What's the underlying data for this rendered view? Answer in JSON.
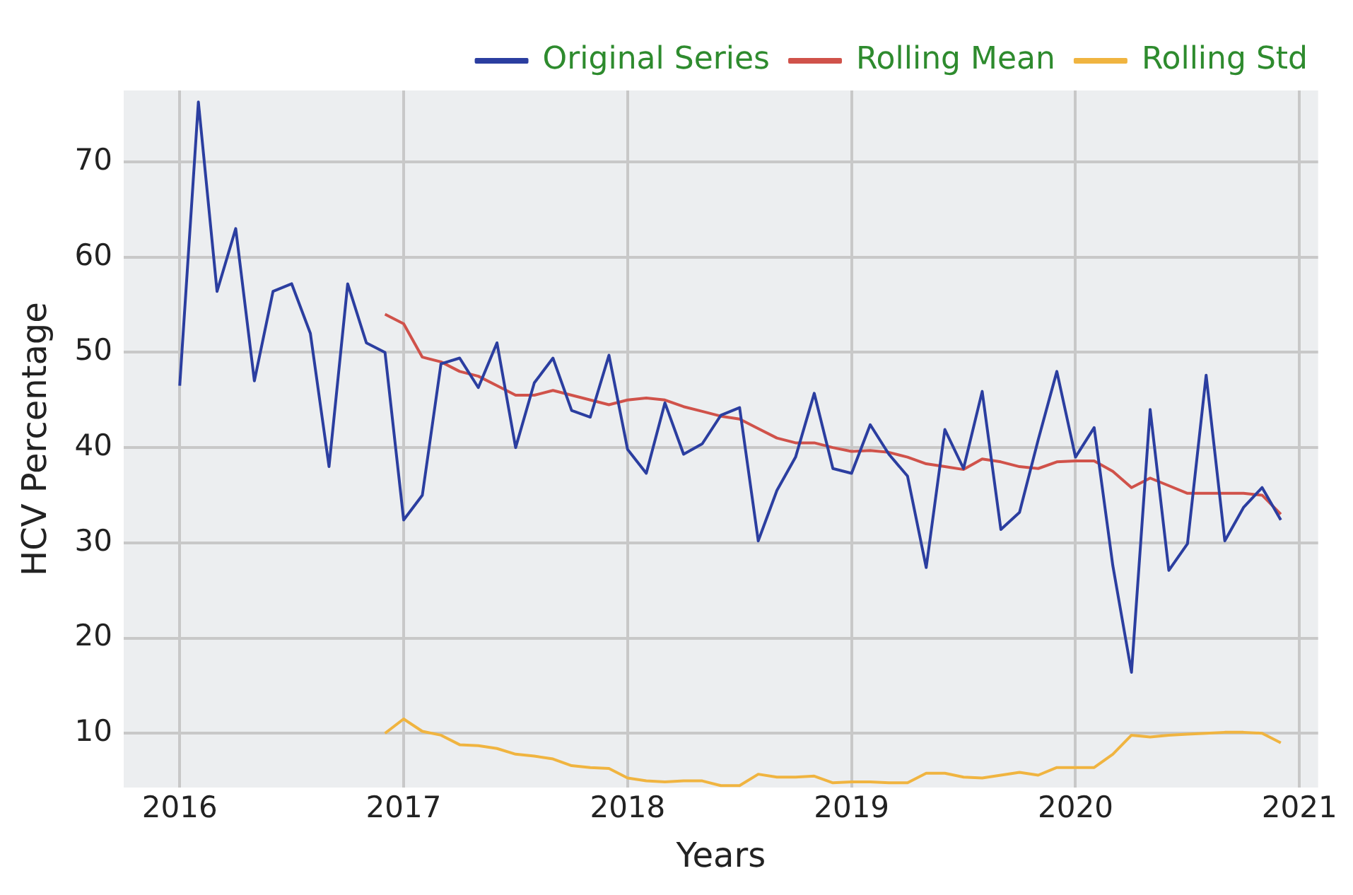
{
  "chart_data": {
    "type": "line",
    "xlabel": "Years",
    "ylabel": "HCV Percentage",
    "x": [
      "2016-01",
      "2016-02",
      "2016-03",
      "2016-04",
      "2016-05",
      "2016-06",
      "2016-07",
      "2016-08",
      "2016-09",
      "2016-10",
      "2016-11",
      "2016-12",
      "2017-01",
      "2017-02",
      "2017-03",
      "2017-04",
      "2017-05",
      "2017-06",
      "2017-07",
      "2017-08",
      "2017-09",
      "2017-10",
      "2017-11",
      "2017-12",
      "2018-01",
      "2018-02",
      "2018-03",
      "2018-04",
      "2018-05",
      "2018-06",
      "2018-07",
      "2018-08",
      "2018-09",
      "2018-10",
      "2018-11",
      "2018-12",
      "2019-01",
      "2019-02",
      "2019-03",
      "2019-04",
      "2019-05",
      "2019-06",
      "2019-07",
      "2019-08",
      "2019-09",
      "2019-10",
      "2019-11",
      "2019-12",
      "2020-01",
      "2020-02",
      "2020-03",
      "2020-04",
      "2020-05",
      "2020-06",
      "2020-07",
      "2020-08",
      "2020-09",
      "2020-10",
      "2020-11",
      "2020-12"
    ],
    "series": [
      {
        "name": "Original Series",
        "color": "#2b3ea0",
        "values": [
          46.5,
          76.3,
          56.4,
          63,
          47,
          56.4,
          57.2,
          52,
          38,
          57.2,
          51,
          50,
          32.4,
          35,
          48.8,
          49.4,
          46.3,
          51,
          40,
          46.8,
          49.4,
          43.9,
          43.2,
          49.7,
          39.8,
          37.3,
          44.7,
          39.3,
          40.4,
          43.4,
          44.2,
          30.2,
          35.5,
          39,
          45.7,
          37.8,
          37.3,
          42.4,
          39.3,
          37,
          27.4,
          41.9,
          37.8,
          45.9,
          31.4,
          33.2,
          40.8,
          48,
          39,
          42.1,
          27.6,
          16.4,
          44,
          27.1,
          29.9,
          47.6,
          30.2,
          33.7,
          35.8,
          32.4
        ]
      },
      {
        "name": "Rolling Mean",
        "color": "#d0524a",
        "values": [
          null,
          null,
          null,
          null,
          null,
          null,
          null,
          null,
          null,
          null,
          null,
          54,
          53,
          49.5,
          49,
          48,
          47.5,
          46.5,
          45.5,
          45.5,
          46,
          45.5,
          45,
          44.5,
          45,
          45.2,
          45,
          44.3,
          43.8,
          43.3,
          43,
          42,
          41,
          40.5,
          40.5,
          40,
          39.6,
          39.7,
          39.5,
          39,
          38.3,
          38,
          37.7,
          38.8,
          38.5,
          38,
          37.8,
          38.5,
          38.6,
          38.6,
          37.5,
          35.8,
          36.8,
          36,
          35.2,
          35.2,
          35.2,
          35.2,
          35,
          33
        ]
      },
      {
        "name": "Rolling Std",
        "color": "#f0b440",
        "values": [
          null,
          null,
          null,
          null,
          null,
          null,
          null,
          null,
          null,
          null,
          null,
          10,
          11.5,
          10.2,
          9.8,
          8.8,
          8.7,
          8.4,
          7.8,
          7.6,
          7.3,
          6.6,
          6.4,
          6.3,
          5.3,
          5,
          4.9,
          5,
          5,
          4.5,
          4.5,
          5.7,
          5.4,
          5.4,
          5.5,
          4.8,
          4.9,
          4.9,
          4.8,
          4.8,
          5.8,
          5.8,
          5.4,
          5.3,
          5.6,
          5.9,
          5.6,
          6.4,
          6.4,
          6.4,
          7.8,
          9.8,
          9.6,
          9.8,
          9.9,
          10,
          10.1,
          10.1,
          10,
          9
        ]
      }
    ],
    "xlim": [
      "2015-10",
      "2021-02"
    ],
    "xticks": [
      "2016",
      "2017",
      "2018",
      "2019",
      "2020",
      "2021"
    ],
    "ylim": [
      4.3,
      77.5
    ],
    "yticks": [
      10,
      20,
      30,
      40,
      50,
      60,
      70
    ],
    "grid": true,
    "legend": "top right",
    "marker": "none",
    "line_style": "solid"
  }
}
